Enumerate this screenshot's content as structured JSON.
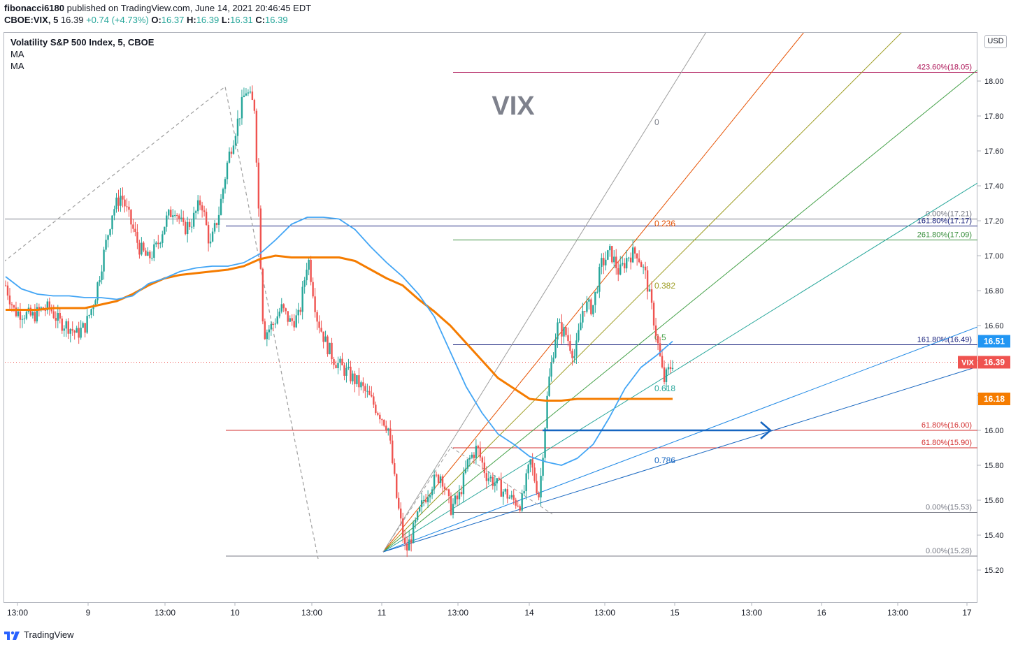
{
  "header": {
    "author": "fibonacci6180",
    "published_text": "published on TradingView.com, June 14, 2021 20:46:45 EDT",
    "symbol": "CBOE:VIX, 5",
    "last": "16.39",
    "change": "+0.74 (+4.73%)",
    "o_label": "O:",
    "o": "16.37",
    "h_label": "H:",
    "h": "16.39",
    "l_label": "L:",
    "l": "16.31",
    "c_label": "C:",
    "c": "16.39"
  },
  "legend": {
    "title": "Volatility S&P 500 Index, 5, CBOE",
    "ma1": "MA",
    "ma2": "MA"
  },
  "watermark": "VIX",
  "currency": "USD",
  "footer": {
    "brand": "TradingView"
  },
  "colors": {
    "up": "#26a69a",
    "down": "#ef5350",
    "ma_fast": "#42a5f5",
    "ma_slow": "#f57c00",
    "fib_grey": "#787b86",
    "fib_purple": "#1a237e",
    "fib_green": "#388e3c",
    "fib_red": "#d32f2f",
    "fib_magenta": "#ad1457",
    "arrow": "#1565c0"
  },
  "chart_data": {
    "type": "line",
    "ylim": [
      15.0,
      18.28
    ],
    "y_ticks": [
      "18.00",
      "17.80",
      "17.60",
      "17.40",
      "17.20",
      "17.00",
      "16.80",
      "16.60",
      "16.40",
      "16.20",
      "16.00",
      "15.80",
      "15.60",
      "15.40",
      "15.20"
    ],
    "x_ticks": [
      "13:00",
      "9",
      "13:00",
      "10",
      "13:00",
      "11",
      "13:00",
      "14",
      "13:00",
      "15",
      "13:00",
      "16",
      "13:00",
      "17"
    ],
    "price_badges": [
      {
        "label": "",
        "value": "16.51",
        "y": 16.51,
        "color": "#2196f3"
      },
      {
        "label": "VIX",
        "value": "16.39",
        "y": 16.39,
        "color": "#ef5350"
      },
      {
        "label": "",
        "value": "16.18",
        "y": 16.18,
        "color": "#f57c00"
      }
    ],
    "fib_levels": [
      {
        "label": "423.60%(18.05)",
        "y": 18.05,
        "color": "#ad1457"
      },
      {
        "label": "0.00%(17.21)",
        "y": 17.21,
        "color": "#787b86"
      },
      {
        "label": "161.80%(17.17)",
        "y": 17.17,
        "color": "#1a237e"
      },
      {
        "label": "261.80%(17.09)",
        "y": 17.09,
        "color": "#388e3c"
      },
      {
        "label": "161.80%(16.49)",
        "y": 16.49,
        "color": "#1a237e"
      },
      {
        "label": "61.80%(16.00)",
        "y": 16.0,
        "color": "#d32f2f"
      },
      {
        "label": "61.80%(15.90)",
        "y": 15.9,
        "color": "#d32f2f"
      },
      {
        "label": "0.00%(15.53)",
        "y": 15.53,
        "color": "#787b86"
      },
      {
        "label": "0.00%(15.28)",
        "y": 15.28,
        "color": "#787b86"
      }
    ],
    "fan_labels": [
      "0",
      "0.236",
      "0.382",
      "0.5",
      "0.618",
      "0.786"
    ],
    "ma_fast": [
      16.88,
      16.81,
      16.78,
      16.77,
      16.77,
      16.76,
      16.76,
      16.75,
      16.77,
      16.84,
      16.87,
      16.91,
      16.93,
      16.94,
      16.94,
      16.96,
      17.01,
      17.09,
      17.18,
      17.22,
      17.22,
      17.21,
      17.15,
      17.05,
      16.96,
      16.88,
      16.78,
      16.65,
      16.45,
      16.25,
      16.1,
      15.98,
      15.92,
      15.85,
      15.82,
      15.8,
      15.84,
      15.92,
      16.07,
      16.24,
      16.36,
      16.43,
      16.51
    ],
    "ma_slow": [
      16.69,
      16.69,
      16.69,
      16.7,
      16.7,
      16.7,
      16.72,
      16.74,
      16.78,
      16.83,
      16.87,
      16.89,
      16.9,
      16.91,
      16.92,
      16.94,
      16.98,
      17.0,
      16.99,
      16.99,
      16.99,
      16.99,
      16.97,
      16.92,
      16.87,
      16.83,
      16.75,
      16.68,
      16.6,
      16.5,
      16.4,
      16.3,
      16.24,
      16.18,
      16.17,
      16.17,
      16.18,
      16.18,
      16.18,
      16.18,
      16.18,
      16.18,
      16.18
    ],
    "price_path": [
      16.83,
      16.68,
      16.67,
      16.65,
      16.69,
      16.7,
      16.62,
      16.6,
      16.55,
      16.6,
      16.75,
      17.0,
      17.25,
      17.35,
      17.2,
      17.05,
      16.98,
      17.05,
      17.2,
      17.28,
      17.15,
      17.2,
      17.32,
      17.05,
      17.25,
      17.55,
      17.75,
      17.95,
      17.85,
      16.55,
      16.6,
      16.7,
      16.62,
      16.65,
      17.0,
      16.65,
      16.5,
      16.4,
      16.35,
      16.3,
      16.25,
      16.18,
      16.1,
      16.02,
      15.6,
      15.3,
      15.45,
      15.6,
      15.7,
      15.75,
      15.55,
      15.62,
      15.82,
      15.9,
      15.75,
      15.7,
      15.65,
      15.6,
      15.58,
      15.82,
      15.62,
      16.25,
      16.6,
      16.55,
      16.42,
      16.72,
      16.7,
      16.95,
      17.02,
      16.9,
      17.0,
      17.02,
      16.88,
      16.6,
      16.28,
      16.39
    ]
  }
}
